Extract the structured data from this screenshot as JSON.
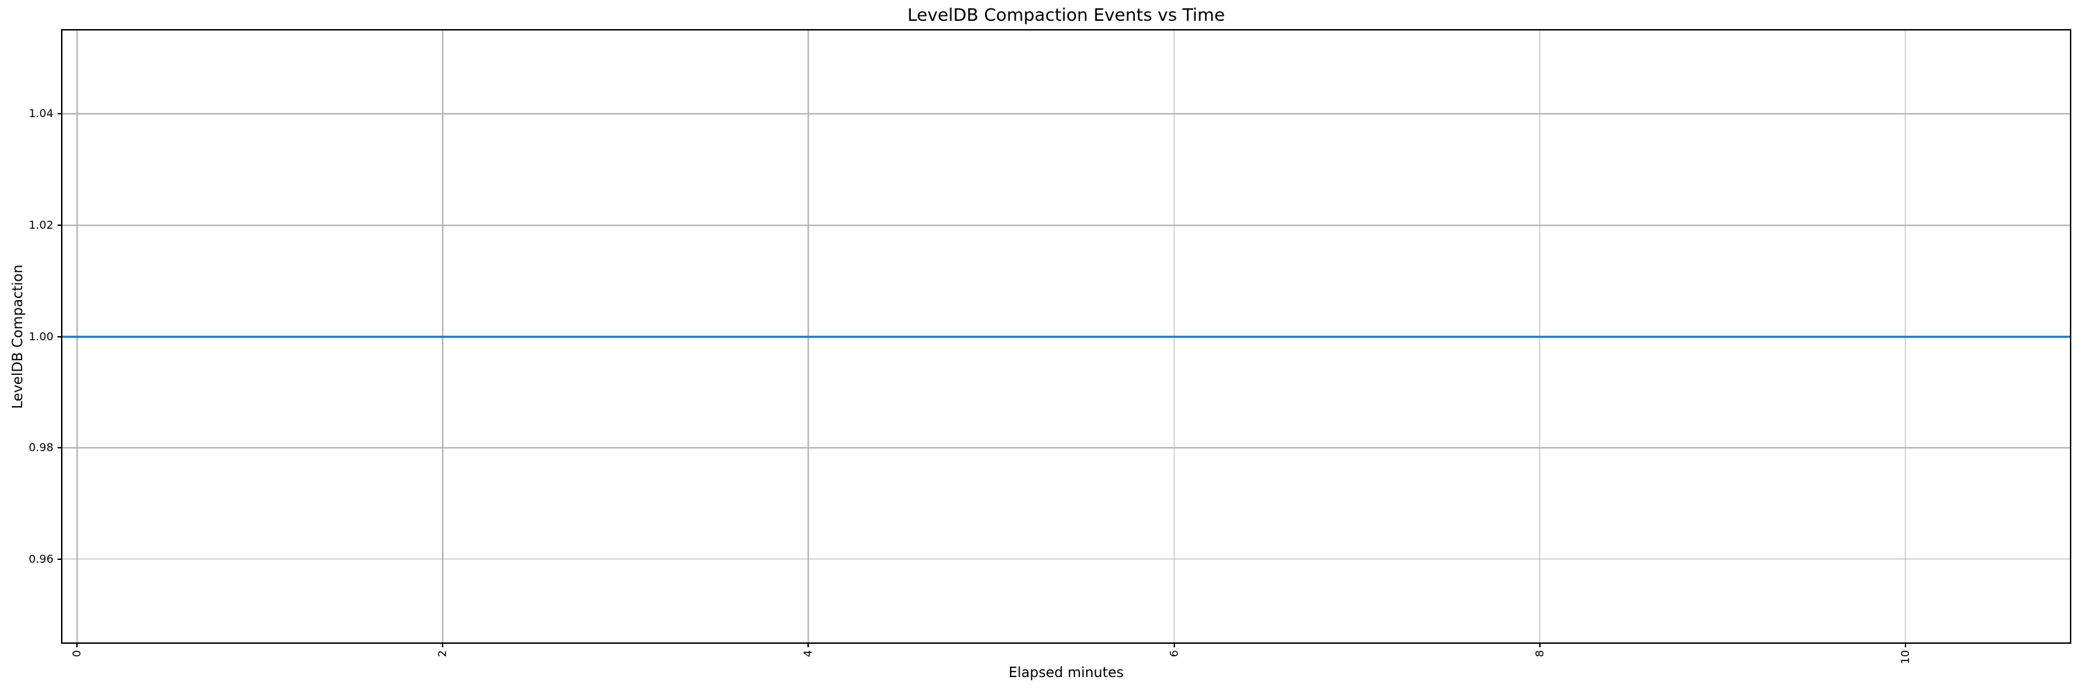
{
  "figure": {
    "background": "#ffffff"
  },
  "chart_data": {
    "type": "line",
    "title": "LevelDB Compaction Events vs Time",
    "xlabel": "Elapsed minutes",
    "ylabel": "LevelDB Compaction",
    "xlim": [
      -0.08,
      10.9
    ],
    "ylim": [
      0.945,
      1.055
    ],
    "x_ticks": [
      {
        "value": 0,
        "label": "0"
      },
      {
        "value": 2,
        "label": "2"
      },
      {
        "value": 4,
        "label": "4"
      },
      {
        "value": 6,
        "label": "6"
      },
      {
        "value": 8,
        "label": "8"
      },
      {
        "value": 10,
        "label": "10"
      }
    ],
    "y_ticks": [
      {
        "value": 0.96,
        "label": "0.96"
      },
      {
        "value": 0.98,
        "label": "0.98"
      },
      {
        "value": 1.0,
        "label": "1.00"
      },
      {
        "value": 1.02,
        "label": "1.02"
      },
      {
        "value": 1.04,
        "label": "1.04"
      }
    ],
    "x_tick_rotation_deg": 90,
    "grid": true,
    "legend": "none",
    "colors": {
      "line": "#1f77b4",
      "grid": "#b0b0b0",
      "spine": "#000000",
      "text": "#000000"
    },
    "series": [
      {
        "name": "LevelDB Compaction",
        "x": [
          -0.08,
          10.9
        ],
        "y": [
          1.0,
          1.0
        ]
      }
    ]
  }
}
